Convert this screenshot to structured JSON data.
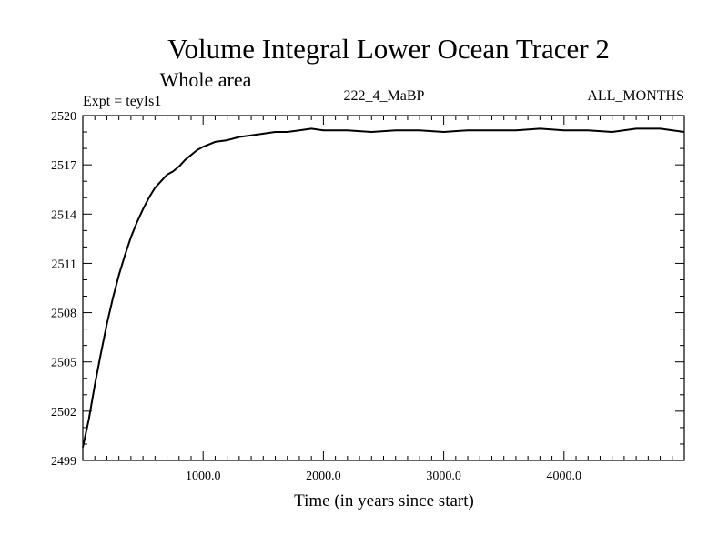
{
  "chart_data": {
    "type": "line",
    "title": "Volume Integral Lower Ocean Tracer 2",
    "subtitle": "Whole area",
    "expt_label": "Expt = teyIs1",
    "run_label": "222_4_MaBP",
    "months_label": "ALL_MONTHS",
    "xlabel": "Time (in years since start)",
    "ylabel": "",
    "xlim": [
      0,
      5000
    ],
    "ylim": [
      2499,
      2520
    ],
    "x_ticks": [
      1000,
      2000,
      3000,
      4000
    ],
    "x_tick_labels": [
      "1000.0",
      "2000.0",
      "3000.0",
      "4000.0"
    ],
    "y_ticks": [
      2499,
      2502,
      2505,
      2508,
      2511,
      2514,
      2517,
      2520
    ],
    "y_tick_labels": [
      "2499",
      "2502",
      "2505",
      "2508",
      "2511",
      "2514",
      "2517",
      "2520"
    ],
    "line_color": "#000000",
    "series": [
      {
        "name": "Volume Integral Lower Ocean Tracer 2",
        "x": [
          0,
          50,
          100,
          150,
          200,
          250,
          300,
          350,
          400,
          450,
          500,
          550,
          600,
          650,
          700,
          750,
          800,
          850,
          900,
          950,
          1000,
          1100,
          1200,
          1300,
          1400,
          1500,
          1600,
          1700,
          1800,
          1900,
          2000,
          2200,
          2400,
          2600,
          2800,
          3000,
          3200,
          3400,
          3600,
          3800,
          4000,
          4200,
          4400,
          4600,
          4800,
          5000
        ],
        "values": [
          2499.8,
          2501.5,
          2503.6,
          2505.5,
          2507.3,
          2508.9,
          2510.3,
          2511.5,
          2512.6,
          2513.5,
          2514.3,
          2515.0,
          2515.6,
          2516.0,
          2516.4,
          2516.6,
          2516.9,
          2517.3,
          2517.6,
          2517.9,
          2518.1,
          2518.4,
          2518.5,
          2518.7,
          2518.8,
          2518.9,
          2519.0,
          2519.0,
          2519.1,
          2519.2,
          2519.1,
          2519.1,
          2519.0,
          2519.1,
          2519.1,
          2519.0,
          2519.1,
          2519.1,
          2519.1,
          2519.2,
          2519.1,
          2519.1,
          2519.0,
          2519.2,
          2519.2,
          2519.0
        ]
      }
    ]
  }
}
